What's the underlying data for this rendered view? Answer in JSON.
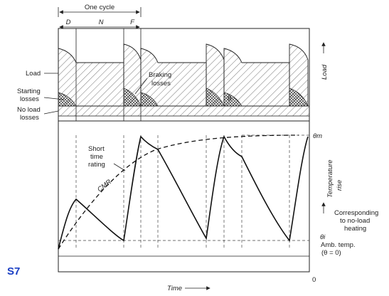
{
  "labels": {
    "one_cycle": "One cycle",
    "d": "D",
    "n": "N",
    "f": "F",
    "load_left": "Load",
    "starting": "Starting",
    "losses1": "losses",
    "no_load": "No load",
    "losses2": "losses",
    "braking": "Braking",
    "braking_losses": "losses",
    "theta_small": "θ",
    "load_axis": "Load",
    "theta_m": "θm",
    "short_time": "Short",
    "time_word": "time",
    "rating": "rating",
    "cmr": "CMR",
    "temperature": "Temperature",
    "rise": "rise",
    "corresponding": "Corresponding",
    "to_no_load": "to no-load",
    "heating": "heating",
    "theta_i": "θi",
    "amb_temp": "Amb. temp.",
    "theta_zero": "(θ = 0)",
    "time_axis": "Time",
    "zero": "0",
    "duty_class": "S7"
  },
  "colors": {
    "ink": "#222222",
    "s7_label": "#1a3fc4"
  }
}
